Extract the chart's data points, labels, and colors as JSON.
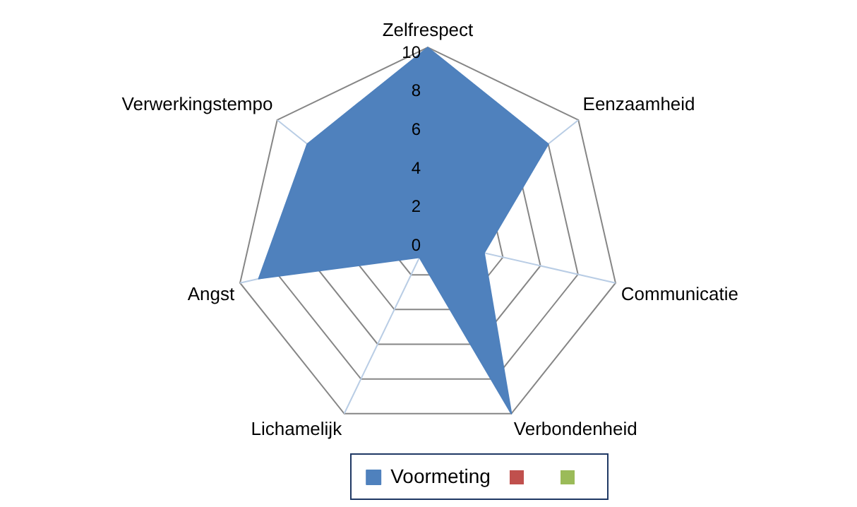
{
  "chart_data": {
    "type": "radar",
    "categories": [
      "Zelfrespect",
      "Eenzaamheid",
      "Communicatie",
      "Verbondenheid",
      "Lichamelijk",
      "Angst",
      "Verwerkingstempo"
    ],
    "series": [
      {
        "name": "Voormeting",
        "color": "#4f81bd",
        "values": [
          10,
          8,
          3,
          10,
          1,
          9,
          8
        ]
      }
    ],
    "ylim": [
      0,
      10
    ],
    "yticks": [
      0,
      2,
      4,
      6,
      8,
      10
    ],
    "grid": true,
    "legend": "bottom",
    "marker": "none"
  }
}
